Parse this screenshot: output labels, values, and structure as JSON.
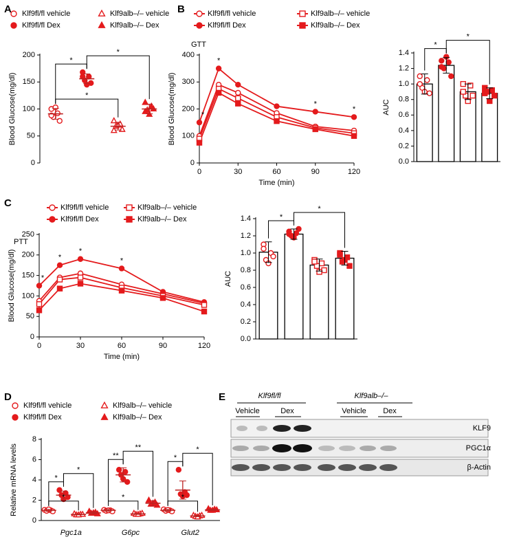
{
  "panels": [
    "A",
    "B",
    "C",
    "D",
    "E"
  ],
  "chart_data": [
    {
      "type": "strip",
      "ylabel": "Blood Glucose(mg/dl)",
      "ylim": [
        0,
        200
      ],
      "yticks": [
        0,
        50,
        100,
        150,
        200
      ],
      "series": [
        {
          "name": "Klf9fl/fl vehicle",
          "color": "#e41a1c",
          "marker": "circle-open",
          "values": [
            [
              100,
              92,
              85,
              78,
              103,
              88
            ]
          ],
          "mean": [
            91
          ],
          "error": [
            10
          ]
        },
        {
          "name": "Klf9fl/fl Dex",
          "color": "#e41a1c",
          "marker": "circle",
          "values": [
            [
              168,
              160,
              153,
              148,
              145,
              160
            ]
          ],
          "mean": [
            156
          ],
          "error": [
            9
          ]
        },
        {
          "name": "Klf9alb–/– vehicle",
          "color": "#e41a1c",
          "marker": "triangle-open",
          "values": [
            [
              78,
              72,
              68,
              62,
              70,
              60
            ]
          ],
          "mean": [
            68
          ],
          "error": [
            7
          ]
        },
        {
          "name": "Klf9alb–/– Dex",
          "color": "#e41a1c",
          "marker": "triangle",
          "values": [
            [
              112,
              105,
              98,
              100,
              90,
              95
            ]
          ],
          "mean": [
            100
          ],
          "error": [
            9
          ]
        }
      ],
      "brackets": [
        {
          "category": 0,
          "from": 0,
          "to": 1,
          "label": "*"
        },
        {
          "category": 0,
          "from": 1,
          "to": 3,
          "label": "*"
        },
        {
          "category": 0,
          "from": 0,
          "to": 2,
          "label": "*"
        }
      ]
    },
    {
      "type": "line",
      "title": "GTT",
      "xlabel": "Time (min)",
      "ylabel": "Blood Glucose(mg/dl)",
      "x": [
        0,
        15,
        30,
        60,
        90,
        120
      ],
      "xlim": [
        0,
        120
      ],
      "xticks": [
        0,
        30,
        60,
        90,
        120
      ],
      "ylim": [
        0,
        400
      ],
      "yticks": [
        0,
        100,
        200,
        300,
        400
      ],
      "series": [
        {
          "name": "Klf9fl/fl vehicle",
          "color": "#e41a1c",
          "marker": "circle-open",
          "values": [
            100,
            290,
            260,
            185,
            135,
            120
          ]
        },
        {
          "name": "Klf9fl/fl Dex",
          "color": "#e41a1c",
          "marker": "circle",
          "values": [
            150,
            350,
            290,
            210,
            190,
            170
          ]
        },
        {
          "name": "Klf9alb–/– vehicle",
          "color": "#e41a1c",
          "marker": "square-open",
          "values": [
            90,
            275,
            240,
            170,
            130,
            110
          ]
        },
        {
          "name": "Klf9alb–/– Dex",
          "color": "#e41a1c",
          "marker": "square",
          "values": [
            75,
            260,
            220,
            155,
            125,
            100
          ]
        }
      ],
      "stars": {
        "x": [
          0,
          15,
          90,
          120
        ],
        "label": "*"
      }
    },
    {
      "type": "bar",
      "ylabel": "AUC",
      "ylim": [
        0,
        1.4
      ],
      "yticks": [
        {
          "value": 0,
          "label": "0.0"
        },
        0.2,
        0.4,
        0.6,
        0.8,
        {
          "value": 1,
          "label": "1.0"
        },
        1.2,
        1.4
      ],
      "values": [
        1.0,
        1.24,
        0.9,
        0.88
      ],
      "errors": [
        0.13,
        0.1,
        0.1,
        0.07
      ],
      "color": "#e41a1c",
      "markers": [
        "circle-open",
        "circle",
        "square-open",
        "square"
      ],
      "points": [
        [
          1.1,
          1.05,
          0.95,
          0.88,
          0.9,
          1.0
        ],
        [
          1.3,
          1.28,
          1.2,
          1.1,
          1.35,
          1.22
        ],
        [
          1.0,
          0.98,
          0.85,
          0.85,
          0.78,
          0.9
        ],
        [
          0.95,
          0.92,
          0.9,
          0.85,
          0.78,
          0.88
        ]
      ],
      "brackets": [
        {
          "from": 0,
          "to": 1,
          "label": "*"
        },
        {
          "from": 1,
          "to": 3,
          "label": "*"
        }
      ]
    },
    {
      "type": "line",
      "title": "PTT",
      "xlabel": "Time (min)",
      "ylabel": "Blood Glucose(mg/dl)",
      "x": [
        0,
        15,
        30,
        60,
        90,
        120
      ],
      "xlim": [
        0,
        120
      ],
      "xticks": [
        0,
        30,
        60,
        90,
        120
      ],
      "ylim": [
        0,
        250
      ],
      "yticks": [
        0,
        50,
        100,
        150,
        200,
        250
      ],
      "series": [
        {
          "name": "Klf9fl/fl vehicle",
          "color": "#e41a1c",
          "marker": "circle-open",
          "values": [
            88,
            145,
            155,
            128,
            105,
            82
          ]
        },
        {
          "name": "Klf9fl/fl Dex",
          "color": "#e41a1c",
          "marker": "circle",
          "values": [
            125,
            175,
            190,
            167,
            110,
            85
          ]
        },
        {
          "name": "Klf9alb–/– vehicle",
          "color": "#e41a1c",
          "marker": "square-open",
          "values": [
            80,
            140,
            145,
            120,
            100,
            78
          ]
        },
        {
          "name": "Klf9alb–/– Dex",
          "color": "#e41a1c",
          "marker": "square",
          "values": [
            65,
            118,
            130,
            113,
            95,
            62
          ]
        }
      ],
      "stars": {
        "x": [
          0,
          15,
          30,
          60
        ],
        "label": "*"
      }
    },
    {
      "type": "bar",
      "ylabel": "AUC",
      "ylim": [
        0,
        1.4
      ],
      "yticks": [
        {
          "value": 0,
          "label": "0.0"
        },
        0.2,
        0.4,
        0.6,
        0.8,
        {
          "value": 1,
          "label": "1.0"
        },
        1.2,
        1.4
      ],
      "values": [
        1.01,
        1.22,
        0.86,
        0.94
      ],
      "errors": [
        0.12,
        0.06,
        0.07,
        0.08
      ],
      "color": "#e41a1c",
      "markers": [
        "circle-open",
        "circle",
        "square-open",
        "square"
      ],
      "points": [
        [
          1.1,
          1.0,
          0.92,
          0.96,
          0.88,
          1.05
        ],
        [
          1.25,
          1.23,
          1.2,
          1.28,
          1.18,
          1.22
        ],
        [
          0.92,
          0.88,
          0.85,
          0.8,
          0.78,
          0.9
        ],
        [
          1.0,
          0.95,
          0.9,
          0.85,
          0.92,
          0.98
        ]
      ],
      "brackets": [
        {
          "from": 0,
          "to": 1,
          "label": "*"
        },
        {
          "from": 1,
          "to": 3,
          "label": "*"
        }
      ]
    },
    {
      "type": "strip",
      "ylabel": "Relative mRNA levels",
      "ylim": [
        0,
        8
      ],
      "yticks": [
        0,
        2,
        4,
        6,
        8
      ],
      "categories": [
        "Pgc1a",
        "G6pc",
        "Glut2"
      ],
      "series": [
        {
          "name": "Klf9fl/fl vehicle",
          "color": "#e41a1c",
          "marker": "circle-open",
          "values": [
            [
              1.05,
              1.0,
              0.95,
              0.9,
              1.1
            ],
            [
              1.05,
              1.0,
              0.95,
              0.9,
              1.0
            ],
            [
              1.1,
              1.0,
              0.95,
              0.9,
              1.05
            ]
          ],
          "mean": [
            1,
            1,
            1
          ],
          "error": [
            0.1,
            0.1,
            0.1
          ]
        },
        {
          "name": "Klf9fl/fl Dex",
          "color": "#e41a1c",
          "marker": "circle",
          "values": [
            [
              3.0,
              2.7,
              2.5,
              2.3,
              2.1
            ],
            [
              5.0,
              4.8,
              4.5,
              3.8,
              4.1
            ],
            [
              5.0,
              2.8,
              2.6,
              2.5,
              2.4
            ]
          ],
          "mean": [
            2.5,
            4.5,
            3.0
          ],
          "error": [
            0.4,
            0.7,
            0.9
          ]
        },
        {
          "name": "Klf9alb–/– vehicle",
          "color": "#e41a1c",
          "marker": "triangle-open",
          "values": [
            [
              0.65,
              0.6,
              0.55,
              0.6,
              0.55
            ],
            [
              0.7,
              0.65,
              0.6,
              0.7,
              0.6
            ],
            [
              0.5,
              0.45,
              0.4,
              0.5,
              0.35
            ]
          ],
          "mean": [
            0.6,
            0.65,
            0.45
          ],
          "error": [
            0.05,
            0.05,
            0.07
          ]
        },
        {
          "name": "Klf9alb–/– Dex",
          "color": "#e41a1c",
          "marker": "triangle",
          "values": [
            [
              0.9,
              0.8,
              0.7,
              0.65,
              0.75
            ],
            [
              2.0,
              1.8,
              1.6,
              1.5,
              1.7
            ],
            [
              1.15,
              1.1,
              1.0,
              1.05,
              1.0
            ]
          ],
          "mean": [
            0.75,
            1.7,
            1.05
          ],
          "error": [
            0.12,
            0.25,
            0.08
          ]
        }
      ],
      "brackets": [
        {
          "category": 0,
          "from": 0,
          "to": 1,
          "label": "*"
        },
        {
          "category": 0,
          "from": 1,
          "to": 3,
          "label": "*"
        },
        {
          "category": 0,
          "from": 0,
          "to": 2,
          "label": "*"
        },
        {
          "category": 1,
          "from": 0,
          "to": 1,
          "label": "**"
        },
        {
          "category": 1,
          "from": 1,
          "to": 3,
          "label": "**"
        },
        {
          "category": 1,
          "from": 0,
          "to": 2,
          "label": "*"
        },
        {
          "category": 2,
          "from": 0,
          "to": 1,
          "label": "*"
        },
        {
          "category": 2,
          "from": 1,
          "to": 3,
          "label": "*"
        },
        {
          "category": 2,
          "from": 0,
          "to": 2,
          "label": "*"
        }
      ]
    }
  ],
  "blot": {
    "groups": [
      {
        "label": "Klf9fl/fl",
        "lanes": [
          "Vehicle",
          "Dex"
        ]
      },
      {
        "label": "Klf9alb–/–",
        "lanes": [
          "Vehicle",
          "Dex"
        ]
      }
    ],
    "rows": [
      "KLF9",
      "PGC1α",
      "β-Actin"
    ]
  }
}
